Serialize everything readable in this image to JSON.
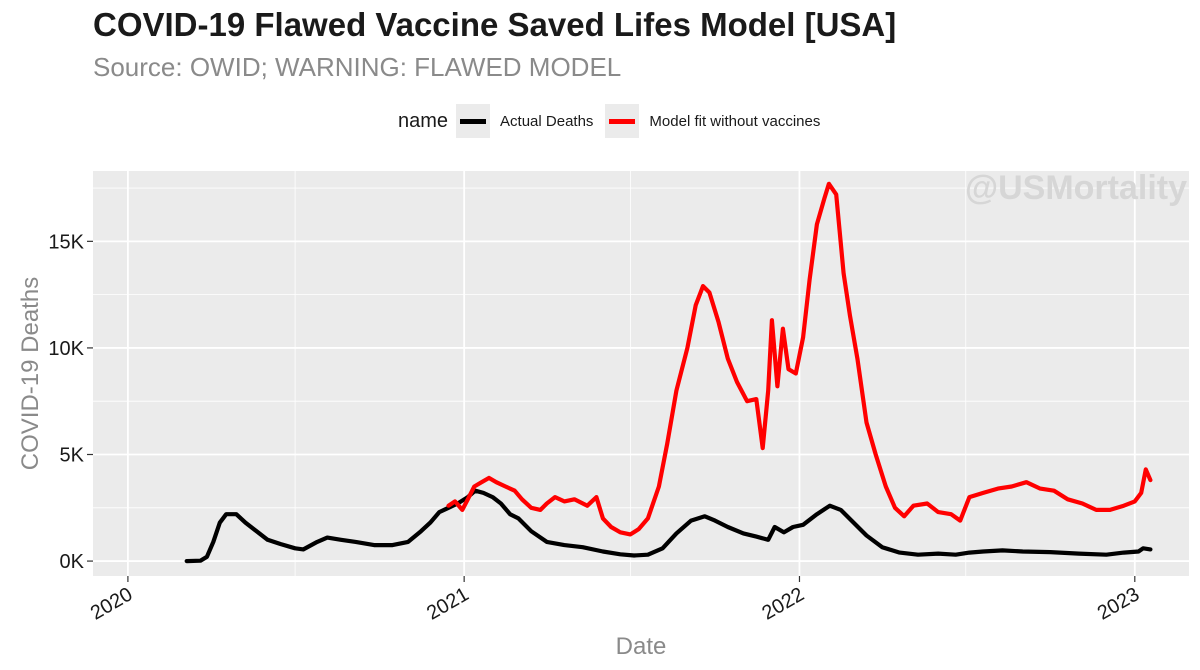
{
  "title": "COVID-19 Flawed Vaccine Saved Lifes Model [USA]",
  "subtitle": "Source: OWID; WARNING: FLAWED MODEL",
  "watermark": "@USMortality",
  "legend": {
    "title": "name",
    "items": [
      {
        "label": "Actual Deaths",
        "color": "#000000"
      },
      {
        "label": "Model fit without vaccines",
        "color": "#ff0000"
      }
    ]
  },
  "chart_data": {
    "type": "line",
    "title": "COVID-19 Flawed Vaccine Saved Lifes Model [USA]",
    "subtitle": "Source: OWID; WARNING: FLAWED MODEL",
    "xlabel": "Date",
    "ylabel": "COVID-19 Deaths",
    "xlim": [
      "2019-11-24",
      "2023-03-01"
    ],
    "ylim": [
      -700,
      18300
    ],
    "x_ticks": [
      "2020",
      "2021",
      "2022",
      "2023"
    ],
    "y_ticks": [
      {
        "value": 0,
        "label": "0K"
      },
      {
        "value": 5000,
        "label": "5K"
      },
      {
        "value": 10000,
        "label": "10K"
      },
      {
        "value": 15000,
        "label": "15K"
      }
    ],
    "grid": true,
    "legend_position": "top",
    "series": [
      {
        "name": "Actual Deaths",
        "color": "#000000",
        "points": [
          [
            "2020-03-05",
            0
          ],
          [
            "2020-03-20",
            20
          ],
          [
            "2020-03-27",
            200
          ],
          [
            "2020-04-03",
            900
          ],
          [
            "2020-04-10",
            1800
          ],
          [
            "2020-04-17",
            2200
          ],
          [
            "2020-04-28",
            2200
          ],
          [
            "2020-05-08",
            1800
          ],
          [
            "2020-05-20",
            1400
          ],
          [
            "2020-06-01",
            1000
          ],
          [
            "2020-06-15",
            800
          ],
          [
            "2020-07-01",
            600
          ],
          [
            "2020-07-10",
            550
          ],
          [
            "2020-07-25",
            900
          ],
          [
            "2020-08-05",
            1100
          ],
          [
            "2020-08-20",
            1000
          ],
          [
            "2020-09-05",
            900
          ],
          [
            "2020-09-25",
            750
          ],
          [
            "2020-10-15",
            750
          ],
          [
            "2020-11-01",
            900
          ],
          [
            "2020-11-15",
            1400
          ],
          [
            "2020-11-25",
            1800
          ],
          [
            "2020-12-05",
            2300
          ],
          [
            "2020-12-15",
            2500
          ],
          [
            "2020-12-25",
            2700
          ],
          [
            "2021-01-05",
            3000
          ],
          [
            "2021-01-13",
            3300
          ],
          [
            "2021-01-22",
            3200
          ],
          [
            "2021-02-01",
            3000
          ],
          [
            "2021-02-10",
            2700
          ],
          [
            "2021-02-20",
            2200
          ],
          [
            "2021-03-01",
            2000
          ],
          [
            "2021-03-15",
            1400
          ],
          [
            "2021-04-01",
            900
          ],
          [
            "2021-04-20",
            750
          ],
          [
            "2021-05-10",
            650
          ],
          [
            "2021-06-01",
            450
          ],
          [
            "2021-06-20",
            320
          ],
          [
            "2021-07-05",
            260
          ],
          [
            "2021-07-20",
            300
          ],
          [
            "2021-08-05",
            600
          ],
          [
            "2021-08-20",
            1300
          ],
          [
            "2021-09-05",
            1900
          ],
          [
            "2021-09-20",
            2100
          ],
          [
            "2021-10-01",
            1900
          ],
          [
            "2021-10-15",
            1600
          ],
          [
            "2021-11-01",
            1300
          ],
          [
            "2021-11-15",
            1150
          ],
          [
            "2021-11-28",
            1000
          ],
          [
            "2021-12-05",
            1600
          ],
          [
            "2021-12-15",
            1350
          ],
          [
            "2021-12-25",
            1600
          ],
          [
            "2022-01-05",
            1700
          ],
          [
            "2022-01-20",
            2200
          ],
          [
            "2022-02-03",
            2600
          ],
          [
            "2022-02-15",
            2400
          ],
          [
            "2022-03-01",
            1800
          ],
          [
            "2022-03-15",
            1200
          ],
          [
            "2022-04-01",
            650
          ],
          [
            "2022-04-20",
            400
          ],
          [
            "2022-05-10",
            300
          ],
          [
            "2022-06-01",
            350
          ],
          [
            "2022-06-20",
            300
          ],
          [
            "2022-07-05",
            400
          ],
          [
            "2022-07-20",
            450
          ],
          [
            "2022-08-10",
            500
          ],
          [
            "2022-09-01",
            450
          ],
          [
            "2022-10-01",
            420
          ],
          [
            "2022-11-01",
            350
          ],
          [
            "2022-12-01",
            300
          ],
          [
            "2022-12-20",
            400
          ],
          [
            "2023-01-05",
            450
          ],
          [
            "2023-01-10",
            600
          ],
          [
            "2023-01-18",
            550
          ]
        ]
      },
      {
        "name": "Model fit without vaccines",
        "color": "#ff0000",
        "points": [
          [
            "2020-12-15",
            2600
          ],
          [
            "2020-12-22",
            2800
          ],
          [
            "2020-12-30",
            2400
          ],
          [
            "2021-01-05",
            2900
          ],
          [
            "2021-01-12",
            3500
          ],
          [
            "2021-01-20",
            3700
          ],
          [
            "2021-01-28",
            3900
          ],
          [
            "2021-02-05",
            3700
          ],
          [
            "2021-02-15",
            3500
          ],
          [
            "2021-02-25",
            3300
          ],
          [
            "2021-03-05",
            2900
          ],
          [
            "2021-03-15",
            2500
          ],
          [
            "2021-03-25",
            2400
          ],
          [
            "2021-04-01",
            2700
          ],
          [
            "2021-04-10",
            3000
          ],
          [
            "2021-04-20",
            2800
          ],
          [
            "2021-05-01",
            2900
          ],
          [
            "2021-05-15",
            2600
          ],
          [
            "2021-05-25",
            3000
          ],
          [
            "2021-06-01",
            2000
          ],
          [
            "2021-06-10",
            1600
          ],
          [
            "2021-06-20",
            1350
          ],
          [
            "2021-07-01",
            1250
          ],
          [
            "2021-07-10",
            1500
          ],
          [
            "2021-07-20",
            2000
          ],
          [
            "2021-08-01",
            3500
          ],
          [
            "2021-08-10",
            5500
          ],
          [
            "2021-08-20",
            8000
          ],
          [
            "2021-09-01",
            10000
          ],
          [
            "2021-09-10",
            12000
          ],
          [
            "2021-09-18",
            12900
          ],
          [
            "2021-09-25",
            12600
          ],
          [
            "2021-10-05",
            11200
          ],
          [
            "2021-10-15",
            9500
          ],
          [
            "2021-10-25",
            8400
          ],
          [
            "2021-11-05",
            7500
          ],
          [
            "2021-11-15",
            7600
          ],
          [
            "2021-11-22",
            5300
          ],
          [
            "2021-11-28",
            8000
          ],
          [
            "2021-12-02",
            11300
          ],
          [
            "2021-12-08",
            8200
          ],
          [
            "2021-12-14",
            10900
          ],
          [
            "2021-12-20",
            9000
          ],
          [
            "2021-12-28",
            8800
          ],
          [
            "2022-01-05",
            10500
          ],
          [
            "2022-01-12",
            13200
          ],
          [
            "2022-01-20",
            15800
          ],
          [
            "2022-01-28",
            17000
          ],
          [
            "2022-02-02",
            17700
          ],
          [
            "2022-02-10",
            17200
          ],
          [
            "2022-02-18",
            13500
          ],
          [
            "2022-02-25",
            11500
          ],
          [
            "2022-03-05",
            9500
          ],
          [
            "2022-03-15",
            6500
          ],
          [
            "2022-03-25",
            5000
          ],
          [
            "2022-04-05",
            3500
          ],
          [
            "2022-04-15",
            2500
          ],
          [
            "2022-04-25",
            2100
          ],
          [
            "2022-05-05",
            2600
          ],
          [
            "2022-05-20",
            2700
          ],
          [
            "2022-06-01",
            2300
          ],
          [
            "2022-06-15",
            2200
          ],
          [
            "2022-06-25",
            1900
          ],
          [
            "2022-07-05",
            3000
          ],
          [
            "2022-07-20",
            3200
          ],
          [
            "2022-08-05",
            3400
          ],
          [
            "2022-08-20",
            3500
          ],
          [
            "2022-09-05",
            3700
          ],
          [
            "2022-09-20",
            3400
          ],
          [
            "2022-10-05",
            3300
          ],
          [
            "2022-10-20",
            2900
          ],
          [
            "2022-11-05",
            2700
          ],
          [
            "2022-11-20",
            2400
          ],
          [
            "2022-12-05",
            2400
          ],
          [
            "2022-12-20",
            2600
          ],
          [
            "2023-01-01",
            2800
          ],
          [
            "2023-01-08",
            3200
          ],
          [
            "2023-01-13",
            4300
          ],
          [
            "2023-01-18",
            3800
          ]
        ]
      }
    ]
  }
}
